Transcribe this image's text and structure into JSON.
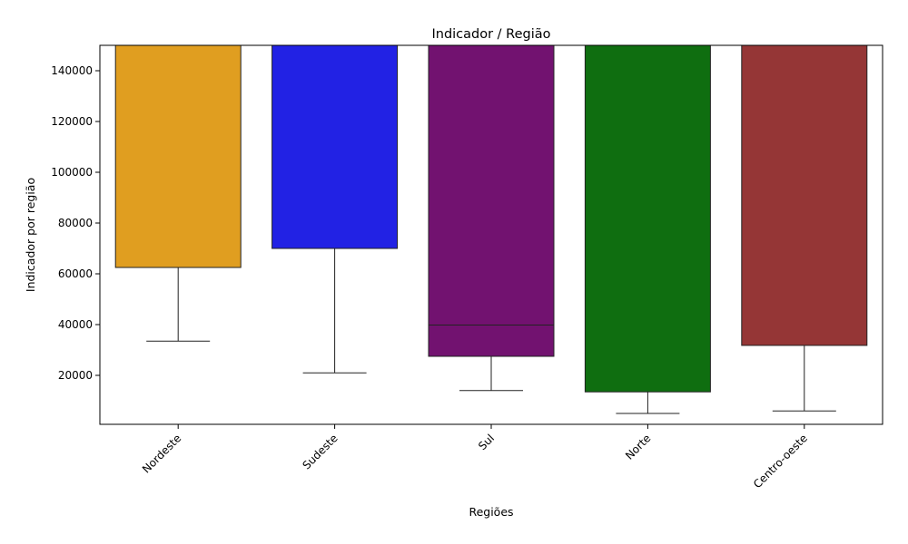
{
  "chart_data": {
    "type": "box",
    "title": "Indicador / Região",
    "xlabel": "Regiões",
    "ylabel": "Indicador por região",
    "ylim": [
      0,
      150000
    ],
    "yticks": [
      20000,
      40000,
      60000,
      80000,
      100000,
      120000,
      140000
    ],
    "ytick_labels": [
      "20000",
      "40000",
      "60000",
      "80000",
      "100000",
      "120000",
      "140000"
    ],
    "categories": [
      "Nordeste",
      "Sudeste",
      "Sul",
      "Norte",
      "Centro-oeste"
    ],
    "colors": [
      "#e09e20",
      "#2222e4",
      "#721270",
      "#0f6e10",
      "#953636"
    ],
    "boxes": [
      {
        "whisker_low": 33500,
        "q1": 62500,
        "median": null,
        "q3": 150000
      },
      {
        "whisker_low": 21000,
        "q1": 70000,
        "median": null,
        "q3": 150000
      },
      {
        "whisker_low": 14000,
        "q1": 27500,
        "median": 39800,
        "q3": 150000
      },
      {
        "whisker_low": 5000,
        "q1": 13500,
        "median": null,
        "q3": 150000
      },
      {
        "whisker_low": 6000,
        "q1": 31800,
        "median": null,
        "q3": 150000
      }
    ]
  }
}
